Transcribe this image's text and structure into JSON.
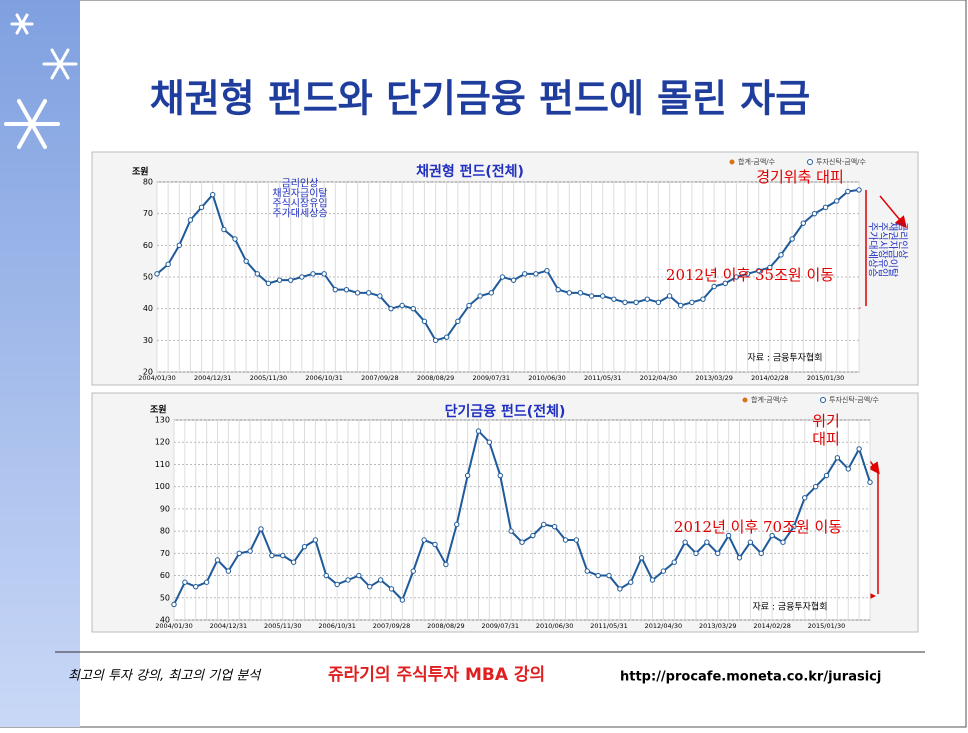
{
  "slide": {
    "title": "채권형 펀드와 단기금융 펀드에 몰린 자금",
    "footer": {
      "tagline": "최고의 투자 강의, 최고의 기업 분석",
      "course": "쥬라기의 주식투자 MBA 강의",
      "url": "http://procafe.moneta.co.kr/jurasicj"
    }
  },
  "chart_data": [
    {
      "type": "line",
      "title": "채권형 펀드(전체)",
      "y_label": "조원",
      "source": "자료 : 금융투자협회",
      "categories": [
        "2004/01/30",
        null,
        null,
        null,
        null,
        "2004/12/31",
        null,
        null,
        null,
        null,
        "2005/11/30",
        null,
        null,
        null,
        null,
        "2006/10/31",
        null,
        null,
        null,
        null,
        "2007/09/28",
        null,
        null,
        null,
        null,
        "2008/08/29",
        null,
        null,
        null,
        null,
        "2009/07/31",
        null,
        null,
        null,
        null,
        "2010/06/30",
        null,
        null,
        null,
        null,
        "2011/05/31",
        null,
        null,
        null,
        null,
        "2012/04/30",
        null,
        null,
        null,
        null,
        "2013/03/29",
        null,
        null,
        null,
        null,
        "2014/02/28",
        null,
        null,
        null,
        null,
        "2015/01/30",
        null,
        null,
        null
      ],
      "series": [
        {
          "name": "투자신탁-금액/수",
          "color": "#1f5a9a",
          "values": [
            51,
            54,
            60,
            68,
            72,
            76,
            65,
            62,
            55,
            51,
            48,
            49,
            49,
            50,
            51,
            51,
            46,
            46,
            45,
            45,
            44,
            40,
            41,
            40,
            36,
            30,
            31,
            36,
            41,
            44,
            45,
            50,
            49,
            51,
            51,
            52,
            46,
            45,
            45,
            44,
            44,
            43,
            42,
            42,
            43,
            42,
            44,
            41,
            42,
            43,
            47,
            48,
            50,
            51,
            52,
            53,
            57,
            62,
            67,
            70,
            72,
            74,
            77,
            77.5
          ]
        }
      ],
      "other_legend": {
        "name": "합계-금액/수",
        "color": "#d9731a"
      },
      "ylim": [
        20,
        80
      ],
      "yticks": [
        20,
        30,
        40,
        50,
        60,
        70,
        80
      ],
      "grid": true,
      "annotations": [
        "금리인상",
        "채권자금이탈",
        "주식시장유입",
        "주가대세상승",
        "경기위축 대피",
        "2012년 이후 35조원 이동",
        "금리인상",
        "채권자금이탈",
        "주식시장유입",
        "주가대세상승"
      ]
    },
    {
      "type": "line",
      "title": "단기금융 펀드(전체)",
      "y_label": "조원",
      "source": "자료 : 금융투자협회",
      "categories": [
        "2004/01/30",
        null,
        null,
        null,
        null,
        "2004/12/31",
        null,
        null,
        null,
        null,
        "2005/11/30",
        null,
        null,
        null,
        null,
        "2006/10/31",
        null,
        null,
        null,
        null,
        "2007/09/28",
        null,
        null,
        null,
        null,
        "2008/08/29",
        null,
        null,
        null,
        null,
        "2009/07/31",
        null,
        null,
        null,
        null,
        "2010/06/30",
        null,
        null,
        null,
        null,
        "2011/05/31",
        null,
        null,
        null,
        null,
        "2012/04/30",
        null,
        null,
        null,
        null,
        "2013/03/29",
        null,
        null,
        null,
        null,
        "2014/02/28",
        null,
        null,
        null,
        null,
        "2015/01/30",
        null,
        null,
        null,
        null
      ],
      "series": [
        {
          "name": "투자신탁-금액/수",
          "color": "#1f5a9a",
          "values": [
            47,
            57,
            55,
            57,
            67,
            62,
            70,
            71,
            81,
            69,
            69,
            66,
            73,
            76,
            60,
            56,
            58,
            60,
            55,
            58,
            54,
            49,
            62,
            76,
            74,
            65,
            83,
            105,
            125,
            120,
            105,
            80,
            75,
            78,
            83,
            82,
            76,
            76,
            62,
            60,
            60,
            54,
            57,
            68,
            58,
            62,
            66,
            75,
            70,
            75,
            70,
            78,
            68,
            75,
            70,
            78,
            75,
            82,
            95,
            100,
            105,
            113,
            108,
            117,
            102
          ]
        }
      ],
      "other_legend": {
        "name": "합계-금액/수",
        "color": "#d9731a"
      },
      "ylim": [
        40,
        130
      ],
      "yticks": [
        40,
        50,
        60,
        70,
        80,
        90,
        100,
        110,
        120,
        130
      ],
      "grid": true,
      "annotations": [
        "위기",
        "대피",
        "2012년 이후 70조원 이동"
      ]
    }
  ]
}
